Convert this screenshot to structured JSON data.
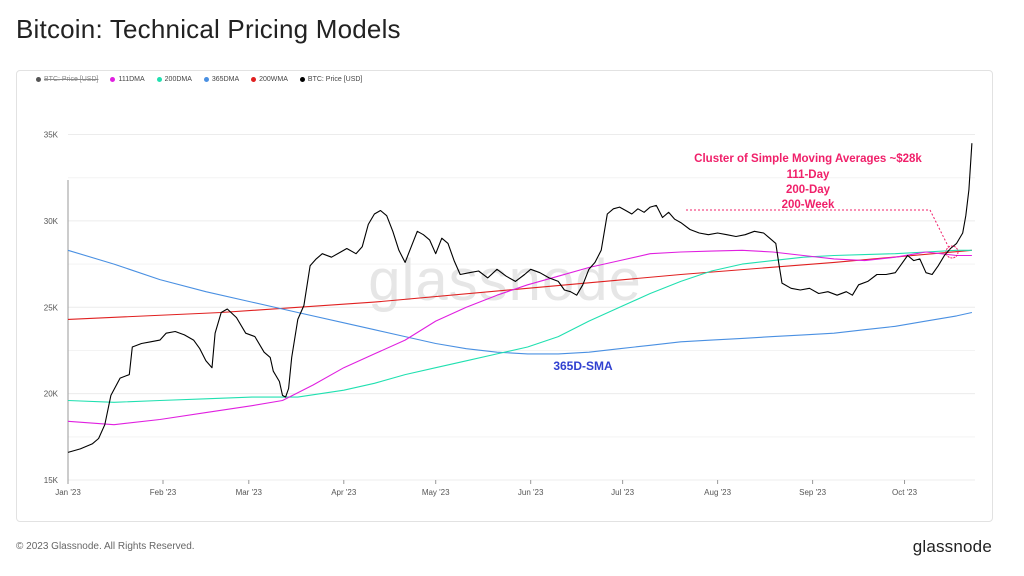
{
  "page": {
    "title": "Bitcoin: Technical Pricing Models",
    "copyright": "© 2023 Glassnode. All Rights Reserved.",
    "logo": "glassnode",
    "watermark": "glassnode"
  },
  "legend": [
    {
      "label": "BTC: Price [USD]",
      "color": "#555555",
      "hidden": true
    },
    {
      "label": "111DMA",
      "color": "#e020e0",
      "hidden": false
    },
    {
      "label": "200DMA",
      "color": "#20e0b0",
      "hidden": false
    },
    {
      "label": "365DMA",
      "color": "#4a90e2",
      "hidden": false
    },
    {
      "label": "200WMA",
      "color": "#e02020",
      "hidden": false
    },
    {
      "label": "BTC: Price [USD]",
      "color": "#000000",
      "hidden": false
    }
  ],
  "annotations": {
    "cluster_lines": [
      "Cluster of Simple Moving Averages ~$28k",
      "111-Day",
      "200-Day",
      "200-Week"
    ],
    "cluster_color": "#f0206a",
    "sma365_label": "365D-SMA",
    "sma365_color": "#3040d0"
  },
  "chart_data": {
    "type": "line",
    "xlabel": "",
    "ylabel": "",
    "x_range": [
      0,
      292
    ],
    "ylim": [
      15000,
      37000
    ],
    "y_ticks": [
      15000,
      20000,
      25000,
      30000,
      35000
    ],
    "y_tick_labels": [
      "15K",
      "20K",
      "25K",
      "30K",
      "35K"
    ],
    "x_ticks": [
      0,
      31,
      59,
      90,
      120,
      151,
      181,
      212,
      243,
      273
    ],
    "x_tick_labels": [
      "Jan '23",
      "Feb '23",
      "Mar '23",
      "Apr '23",
      "May '23",
      "Jun '23",
      "Jul '23",
      "Aug '23",
      "Sep '23",
      "Oct '23"
    ],
    "grid": true,
    "series": [
      {
        "name": "BTC: Price [USD]",
        "color": "#000000",
        "width": 1.1,
        "points": [
          [
            0,
            16600
          ],
          [
            4,
            16800
          ],
          [
            8,
            17100
          ],
          [
            10,
            17400
          ],
          [
            12,
            18200
          ],
          [
            14,
            19900
          ],
          [
            17,
            20900
          ],
          [
            20,
            21100
          ],
          [
            21,
            22700
          ],
          [
            24,
            22900
          ],
          [
            27,
            23000
          ],
          [
            30,
            23100
          ],
          [
            32,
            23500
          ],
          [
            35,
            23600
          ],
          [
            38,
            23400
          ],
          [
            41,
            23100
          ],
          [
            43,
            22600
          ],
          [
            45,
            21900
          ],
          [
            47,
            21500
          ],
          [
            48,
            23500
          ],
          [
            50,
            24700
          ],
          [
            52,
            24900
          ],
          [
            55,
            24400
          ],
          [
            58,
            23500
          ],
          [
            61,
            23300
          ],
          [
            64,
            22400
          ],
          [
            66,
            22100
          ],
          [
            67,
            21300
          ],
          [
            69,
            20700
          ],
          [
            70,
            19900
          ],
          [
            71,
            19800
          ],
          [
            72,
            20300
          ],
          [
            73,
            22100
          ],
          [
            75,
            24300
          ],
          [
            77,
            25100
          ],
          [
            79,
            27400
          ],
          [
            81,
            27800
          ],
          [
            83,
            28100
          ],
          [
            86,
            27900
          ],
          [
            89,
            28200
          ],
          [
            91,
            28400
          ],
          [
            94,
            28100
          ],
          [
            96,
            28500
          ],
          [
            98,
            29800
          ],
          [
            100,
            30400
          ],
          [
            102,
            30600
          ],
          [
            104,
            30300
          ],
          [
            106,
            29400
          ],
          [
            108,
            28300
          ],
          [
            110,
            27600
          ],
          [
            112,
            28500
          ],
          [
            114,
            29400
          ],
          [
            116,
            29200
          ],
          [
            118,
            28900
          ],
          [
            120,
            28100
          ],
          [
            122,
            29000
          ],
          [
            124,
            28700
          ],
          [
            126,
            27700
          ],
          [
            128,
            26900
          ],
          [
            131,
            27000
          ],
          [
            134,
            27100
          ],
          [
            137,
            26700
          ],
          [
            140,
            27200
          ],
          [
            143,
            26800
          ],
          [
            146,
            26500
          ],
          [
            149,
            26900
          ],
          [
            151,
            27200
          ],
          [
            154,
            27000
          ],
          [
            157,
            26700
          ],
          [
            160,
            26500
          ],
          [
            162,
            26000
          ],
          [
            164,
            25900
          ],
          [
            166,
            25700
          ],
          [
            168,
            26300
          ],
          [
            170,
            27200
          ],
          [
            172,
            27600
          ],
          [
            174,
            28300
          ],
          [
            176,
            30400
          ],
          [
            178,
            30700
          ],
          [
            180,
            30800
          ],
          [
            182,
            30600
          ],
          [
            184,
            30400
          ],
          [
            186,
            30700
          ],
          [
            188,
            30500
          ],
          [
            190,
            30800
          ],
          [
            192,
            30900
          ],
          [
            194,
            30200
          ],
          [
            196,
            30500
          ],
          [
            198,
            30100
          ],
          [
            200,
            29900
          ],
          [
            203,
            29500
          ],
          [
            206,
            29300
          ],
          [
            209,
            29200
          ],
          [
            212,
            29300
          ],
          [
            215,
            29200
          ],
          [
            218,
            29100
          ],
          [
            221,
            29200
          ],
          [
            224,
            29400
          ],
          [
            227,
            29300
          ],
          [
            229,
            29000
          ],
          [
            231,
            28700
          ],
          [
            232,
            27500
          ],
          [
            233,
            26400
          ],
          [
            236,
            26100
          ],
          [
            239,
            26000
          ],
          [
            242,
            26100
          ],
          [
            245,
            25800
          ],
          [
            248,
            25900
          ],
          [
            251,
            25700
          ],
          [
            254,
            25900
          ],
          [
            256,
            25700
          ],
          [
            258,
            26300
          ],
          [
            261,
            26500
          ],
          [
            264,
            26900
          ],
          [
            267,
            26900
          ],
          [
            270,
            27000
          ],
          [
            272,
            27500
          ],
          [
            274,
            28000
          ],
          [
            276,
            27700
          ],
          [
            278,
            27800
          ],
          [
            280,
            27000
          ],
          [
            282,
            26900
          ],
          [
            284,
            27400
          ],
          [
            286,
            28000
          ],
          [
            288,
            28400
          ],
          [
            290,
            28700
          ],
          [
            292,
            29300
          ],
          [
            293,
            30300
          ],
          [
            294,
            31800
          ],
          [
            295,
            34500
          ]
        ]
      },
      {
        "name": "111DMA",
        "color": "#e020e0",
        "width": 1.1,
        "points": [
          [
            0,
            18400
          ],
          [
            15,
            18200
          ],
          [
            30,
            18500
          ],
          [
            45,
            18900
          ],
          [
            60,
            19300
          ],
          [
            70,
            19600
          ],
          [
            80,
            20500
          ],
          [
            90,
            21500
          ],
          [
            100,
            22300
          ],
          [
            110,
            23100
          ],
          [
            120,
            24200
          ],
          [
            130,
            25000
          ],
          [
            140,
            25700
          ],
          [
            150,
            26300
          ],
          [
            160,
            26800
          ],
          [
            170,
            27300
          ],
          [
            180,
            27700
          ],
          [
            190,
            28100
          ],
          [
            200,
            28200
          ],
          [
            210,
            28250
          ],
          [
            220,
            28300
          ],
          [
            230,
            28200
          ],
          [
            240,
            28000
          ],
          [
            250,
            27800
          ],
          [
            260,
            27700
          ],
          [
            270,
            27900
          ],
          [
            280,
            28200
          ],
          [
            290,
            28000
          ],
          [
            295,
            28000
          ]
        ]
      },
      {
        "name": "200DMA",
        "color": "#20e0b0",
        "width": 1.1,
        "points": [
          [
            0,
            19600
          ],
          [
            15,
            19500
          ],
          [
            30,
            19600
          ],
          [
            45,
            19700
          ],
          [
            60,
            19800
          ],
          [
            75,
            19800
          ],
          [
            90,
            20200
          ],
          [
            100,
            20600
          ],
          [
            110,
            21100
          ],
          [
            120,
            21500
          ],
          [
            130,
            21900
          ],
          [
            140,
            22300
          ],
          [
            150,
            22700
          ],
          [
            160,
            23300
          ],
          [
            170,
            24200
          ],
          [
            180,
            25000
          ],
          [
            190,
            25800
          ],
          [
            200,
            26500
          ],
          [
            210,
            27100
          ],
          [
            220,
            27500
          ],
          [
            230,
            27700
          ],
          [
            240,
            27900
          ],
          [
            250,
            28000
          ],
          [
            260,
            28050
          ],
          [
            270,
            28100
          ],
          [
            280,
            28200
          ],
          [
            290,
            28300
          ],
          [
            295,
            28300
          ]
        ]
      },
      {
        "name": "365DMA",
        "color": "#4a90e2",
        "width": 1.1,
        "points": [
          [
            0,
            28300
          ],
          [
            15,
            27500
          ],
          [
            30,
            26600
          ],
          [
            45,
            25900
          ],
          [
            60,
            25300
          ],
          [
            75,
            24700
          ],
          [
            90,
            24100
          ],
          [
            100,
            23700
          ],
          [
            110,
            23300
          ],
          [
            120,
            22900
          ],
          [
            130,
            22600
          ],
          [
            140,
            22400
          ],
          [
            150,
            22300
          ],
          [
            160,
            22300
          ],
          [
            170,
            22400
          ],
          [
            180,
            22600
          ],
          [
            190,
            22800
          ],
          [
            200,
            23000
          ],
          [
            210,
            23100
          ],
          [
            220,
            23200
          ],
          [
            230,
            23300
          ],
          [
            240,
            23400
          ],
          [
            250,
            23500
          ],
          [
            260,
            23700
          ],
          [
            270,
            23900
          ],
          [
            280,
            24200
          ],
          [
            290,
            24500
          ],
          [
            295,
            24700
          ]
        ]
      },
      {
        "name": "200WMA",
        "color": "#e02020",
        "width": 1.1,
        "points": [
          [
            0,
            24300
          ],
          [
            50,
            24700
          ],
          [
            100,
            25300
          ],
          [
            150,
            26100
          ],
          [
            200,
            26900
          ],
          [
            250,
            27600
          ],
          [
            295,
            28300
          ]
        ]
      }
    ]
  }
}
